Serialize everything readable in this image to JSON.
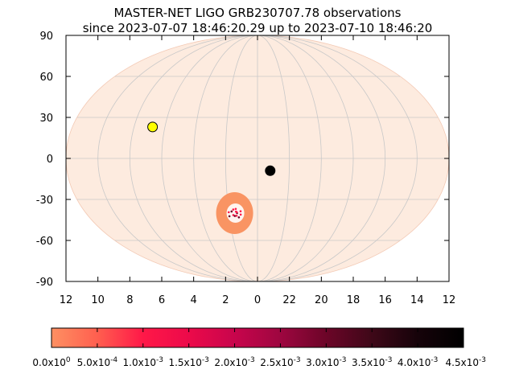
{
  "title_line1": "MASTER-NET LIGO GRB230707.78 observations",
  "title_line2": "since 2023-07-07 18:46:20.29 up to 2023-07-10 18:46:20",
  "chart_data": {
    "type": "scatter",
    "projection": "mollweide",
    "grid": true,
    "ylim": [
      -90,
      90
    ],
    "y_ticks": [
      "90",
      "60",
      "30",
      "0",
      "-30",
      "-60",
      "-90"
    ],
    "x_ticks": [
      "12",
      "10",
      "8",
      "6",
      "4",
      "2",
      "0",
      "22",
      "20",
      "18",
      "16",
      "14",
      "12"
    ],
    "x_tick_values": [
      12,
      10,
      8,
      6,
      4,
      2,
      0,
      22,
      20,
      18,
      16,
      14,
      12
    ],
    "sky_background_color": "#fdebdf",
    "localization_region": {
      "center_ra_h": 1.6,
      "center_dec": -40,
      "color": "#f99463"
    },
    "points": [
      {
        "ra_h": 6.8,
        "dec": 23,
        "color": "#ffff00",
        "marker": "circle"
      },
      {
        "ra_h": 23.2,
        "dec": -9,
        "color": "#000000",
        "marker": "circle"
      }
    ],
    "colorbar": {
      "range": [
        0,
        0.0045
      ],
      "ticks": [
        {
          "mant": "0.0x10",
          "exp": "0"
        },
        {
          "mant": "5.0x10",
          "exp": "-4"
        },
        {
          "mant": "1.0x10",
          "exp": "-3"
        },
        {
          "mant": "1.5x10",
          "exp": "-3"
        },
        {
          "mant": "2.0x10",
          "exp": "-3"
        },
        {
          "mant": "2.5x10",
          "exp": "-3"
        },
        {
          "mant": "3.0x10",
          "exp": "-3"
        },
        {
          "mant": "3.5x10",
          "exp": "-3"
        },
        {
          "mant": "4.0x10",
          "exp": "-3"
        },
        {
          "mant": "4.5x10",
          "exp": "-3"
        }
      ],
      "colors": [
        "#fe9062",
        "#ff5f4f",
        "#ff1848",
        "#ec0a4a",
        "#c8054c",
        "#9e0640",
        "#6c0528",
        "#3e0818",
        "#16030a",
        "#000000"
      ]
    }
  }
}
